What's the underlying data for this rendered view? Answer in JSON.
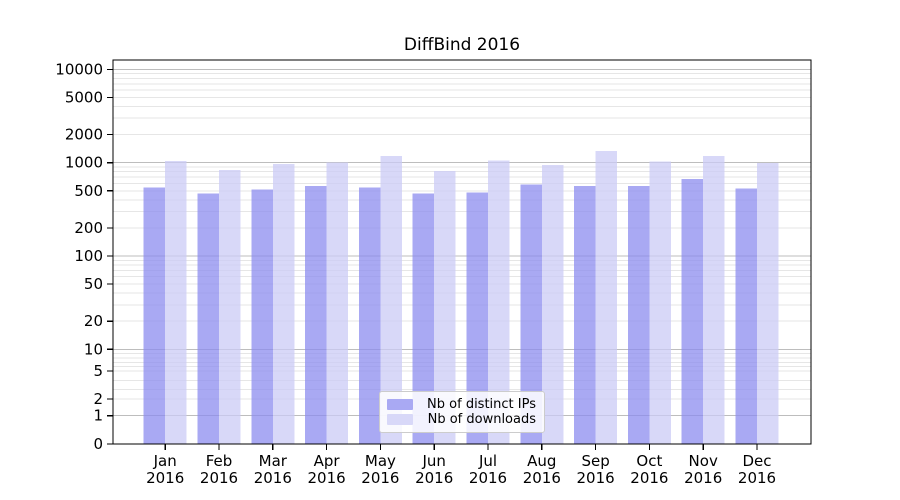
{
  "chart_data": {
    "type": "bar",
    "title": "DiffBind 2016",
    "x_year": "2016",
    "categories": [
      "Jan",
      "Feb",
      "Mar",
      "Apr",
      "May",
      "Jun",
      "Jul",
      "Aug",
      "Sep",
      "Oct",
      "Nov",
      "Dec"
    ],
    "series": [
      {
        "name": "Nb of distinct IPs",
        "color": "#a9a9f3",
        "values": [
          545,
          470,
          515,
          560,
          540,
          465,
          480,
          585,
          560,
          560,
          665,
          530
        ]
      },
      {
        "name": "Nb of downloads",
        "color": "#d8d8f8",
        "values": [
          1040,
          835,
          965,
          1010,
          1180,
          810,
          1050,
          945,
          1335,
          1035,
          1180,
          990
        ]
      }
    ],
    "y_axis": {
      "scale": "symlog",
      "ticks": [
        10000,
        5000,
        2000,
        1000,
        500,
        200,
        100,
        50,
        20,
        10,
        5,
        2,
        1,
        0
      ],
      "ylim": [
        0,
        12600
      ]
    },
    "grid": "horizontal",
    "legend_position": "inside-bottom-center",
    "colors": {
      "grid_major": "#bdbdbd",
      "grid_minor": "#e6e6e6",
      "axis": "#000000",
      "text": "#000000",
      "legend_border": "#cccccc"
    }
  }
}
